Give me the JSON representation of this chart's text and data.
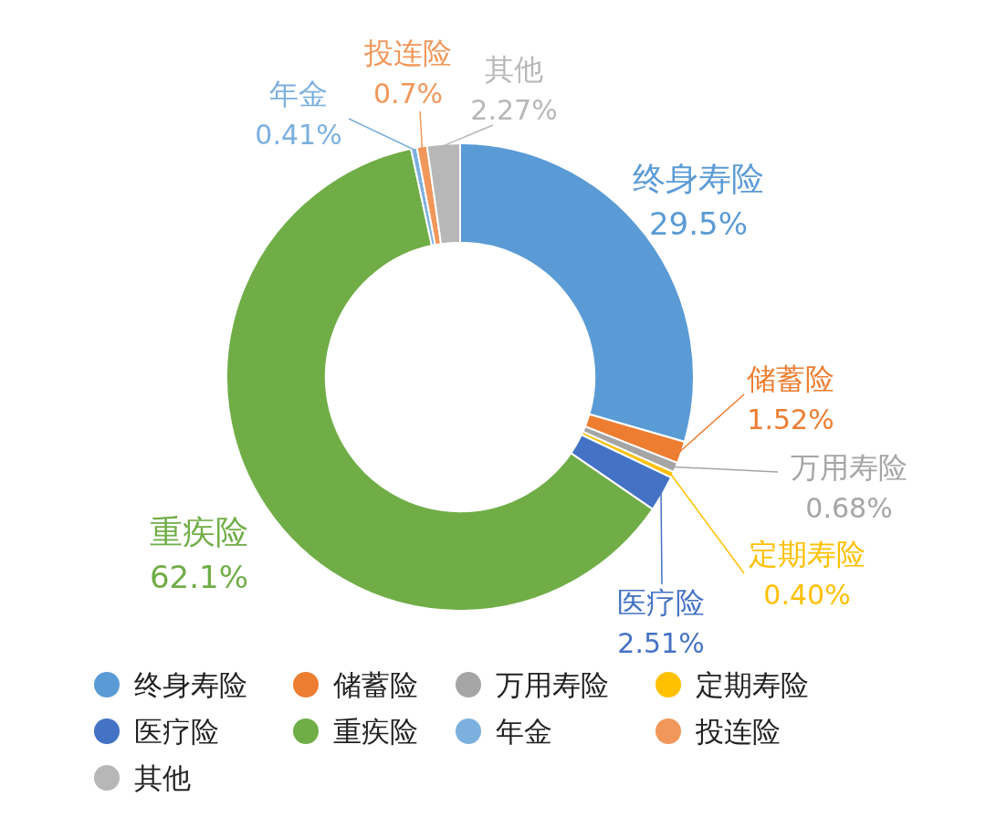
{
  "chart_data": {
    "type": "donut",
    "categories": [
      "终身寿险",
      "储蓄险",
      "万用寿险",
      "定期寿险",
      "医疗险",
      "重疾险",
      "年金",
      "投连险",
      "其他"
    ],
    "values": [
      29.5,
      1.52,
      0.68,
      0.4,
      2.51,
      62.1,
      0.41,
      0.7,
      2.27
    ],
    "value_labels": [
      "29.5%",
      "1.52%",
      "0.68%",
      "0.40%",
      "2.51%",
      "62.1%",
      "0.41%",
      "0.7%",
      "2.27%"
    ],
    "colors": [
      "#5b9bd5",
      "#ed7d31",
      "#a5a5a5",
      "#ffc000",
      "#4472c4",
      "#70ad47",
      "#7cb0de",
      "#f1975a",
      "#b7b7b7"
    ],
    "legend": "bottom"
  }
}
